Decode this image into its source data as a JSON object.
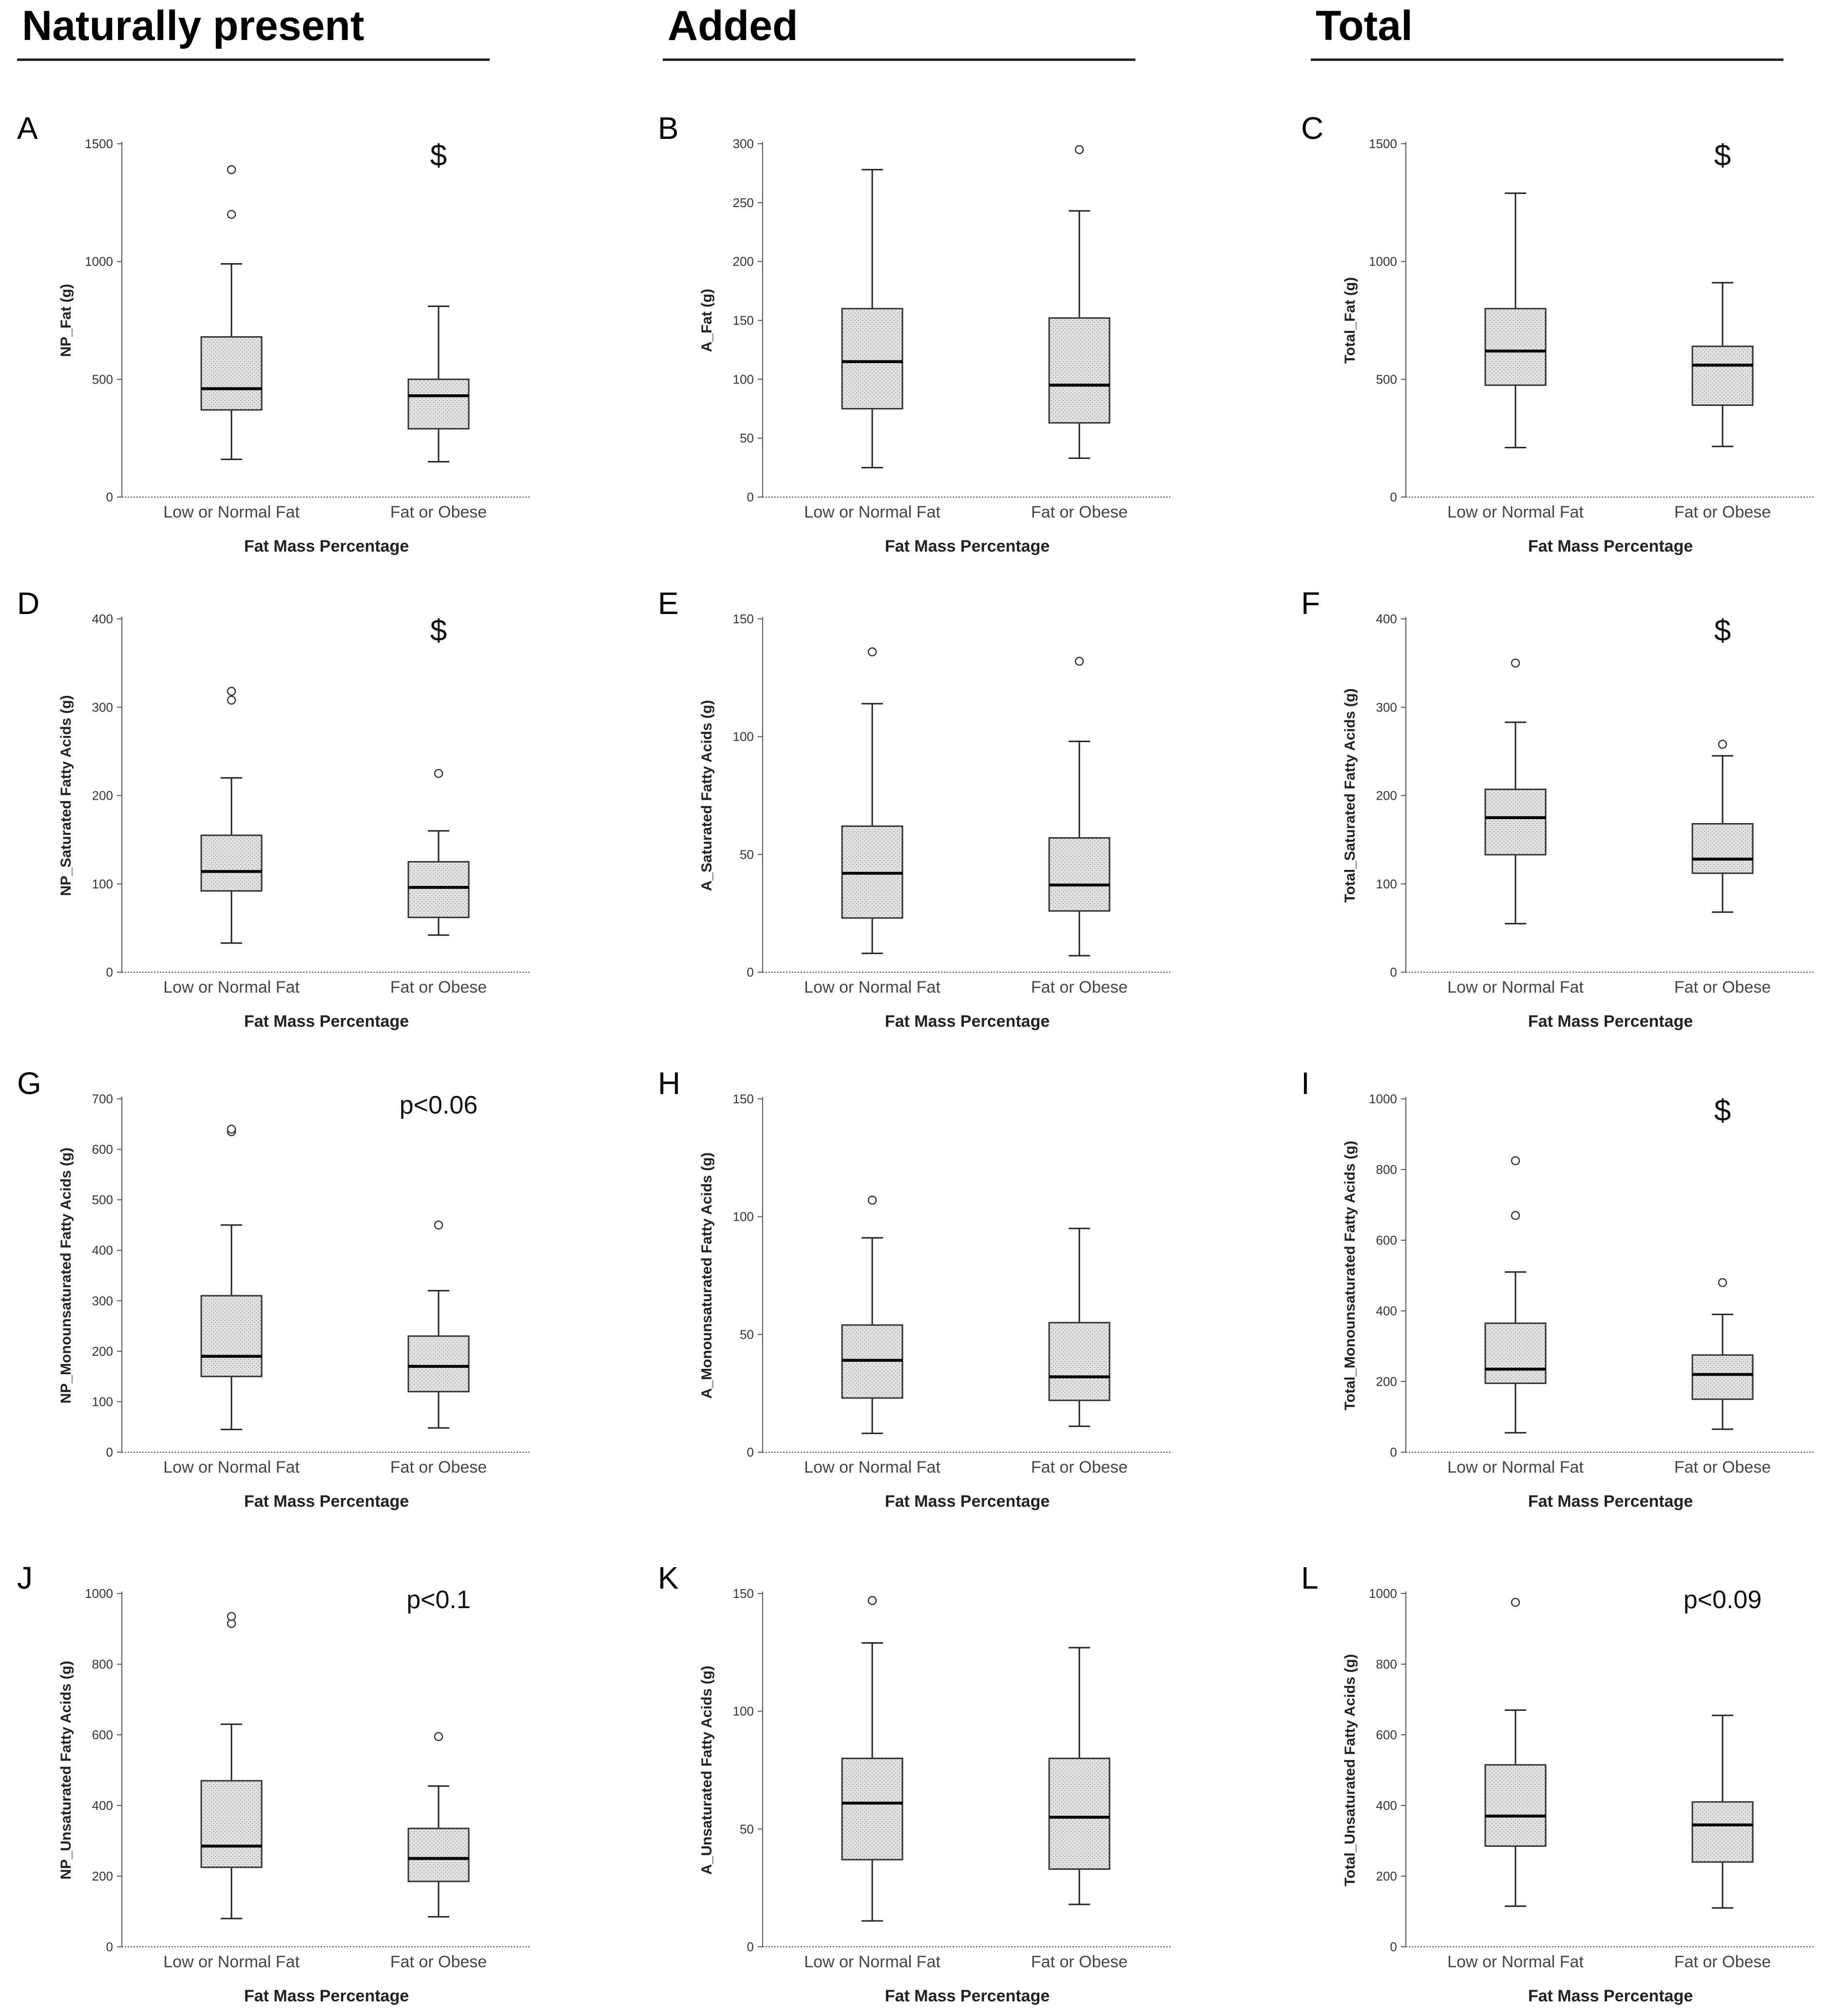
{
  "headers": {
    "naturally_present": "Naturally present",
    "added": "Added",
    "total": "Total"
  },
  "colors": {
    "box_fill": "#e2e2e2",
    "box_stroke": "#333333",
    "axis": "#555555",
    "median": "#000000"
  },
  "chart_data": [
    {
      "panel": "A",
      "type": "box",
      "ylabel": "NP_Fat (g)",
      "xlabel": "Fat Mass Percentage",
      "yticks": [
        0,
        500,
        1000,
        1500
      ],
      "ylim": [
        0,
        1500
      ],
      "sig": "$",
      "groups": [
        {
          "category": "Low or Normal Fat",
          "min": 160,
          "q1": 370,
          "median": 460,
          "q3": 680,
          "max": 990,
          "outliers": [
            1200,
            1390
          ]
        },
        {
          "category": "Fat or Obese",
          "min": 150,
          "q1": 290,
          "median": 430,
          "q3": 500,
          "max": 810,
          "outliers": []
        }
      ]
    },
    {
      "panel": "B",
      "type": "box",
      "ylabel": "A_Fat (g)",
      "xlabel": "Fat Mass Percentage",
      "yticks": [
        0,
        50,
        100,
        150,
        200,
        250,
        300
      ],
      "ylim": [
        0,
        300
      ],
      "sig": "",
      "groups": [
        {
          "category": "Low or Normal Fat",
          "min": 25,
          "q1": 75,
          "median": 115,
          "q3": 160,
          "max": 278,
          "outliers": []
        },
        {
          "category": "Fat or Obese",
          "min": 33,
          "q1": 63,
          "median": 95,
          "q3": 152,
          "max": 243,
          "outliers": [
            295
          ]
        }
      ]
    },
    {
      "panel": "C",
      "type": "box",
      "ylabel": "Total_Fat (g)",
      "xlabel": "Fat Mass Percentage",
      "yticks": [
        0,
        500,
        1000,
        1500
      ],
      "ylim": [
        0,
        1500
      ],
      "sig": "$",
      "groups": [
        {
          "category": "Low or Normal Fat",
          "min": 210,
          "q1": 475,
          "median": 620,
          "q3": 800,
          "max": 1290,
          "outliers": []
        },
        {
          "category": "Fat or Obese",
          "min": 215,
          "q1": 390,
          "median": 560,
          "q3": 640,
          "max": 910,
          "outliers": []
        }
      ]
    },
    {
      "panel": "D",
      "type": "box",
      "ylabel": "NP_Saturated Fatty Acids (g)",
      "xlabel": "Fat Mass Percentage",
      "yticks": [
        0,
        100,
        200,
        300,
        400
      ],
      "ylim": [
        0,
        400
      ],
      "sig": "$",
      "groups": [
        {
          "category": "Low or Normal Fat",
          "min": 33,
          "q1": 92,
          "median": 114,
          "q3": 155,
          "max": 220,
          "outliers": [
            308,
            318
          ]
        },
        {
          "category": "Fat or Obese",
          "min": 42,
          "q1": 62,
          "median": 96,
          "q3": 125,
          "max": 160,
          "outliers": [
            225
          ]
        }
      ]
    },
    {
      "panel": "E",
      "type": "box",
      "ylabel": "A_Saturated Fatty Acids (g)",
      "xlabel": "Fat Mass Percentage",
      "yticks": [
        0,
        50,
        100,
        150
      ],
      "ylim": [
        0,
        150
      ],
      "sig": "",
      "groups": [
        {
          "category": "Low or Normal Fat",
          "min": 8,
          "q1": 23,
          "median": 42,
          "q3": 62,
          "max": 114,
          "outliers": [
            136
          ]
        },
        {
          "category": "Fat or Obese",
          "min": 7,
          "q1": 26,
          "median": 37,
          "q3": 57,
          "max": 98,
          "outliers": [
            132
          ]
        }
      ]
    },
    {
      "panel": "F",
      "type": "box",
      "ylabel": "Total_Saturated Fatty Acids (g)",
      "xlabel": "Fat Mass Percentage",
      "yticks": [
        0,
        100,
        200,
        300,
        400
      ],
      "ylim": [
        0,
        400
      ],
      "sig": "$",
      "groups": [
        {
          "category": "Low or Normal Fat",
          "min": 55,
          "q1": 133,
          "median": 175,
          "q3": 207,
          "max": 283,
          "outliers": [
            350
          ]
        },
        {
          "category": "Fat or Obese",
          "min": 68,
          "q1": 112,
          "median": 128,
          "q3": 168,
          "max": 245,
          "outliers": [
            258
          ]
        }
      ]
    },
    {
      "panel": "G",
      "type": "box",
      "ylabel": "NP_Monounsaturated Fatty Acids (g)",
      "xlabel": "Fat Mass Percentage",
      "yticks": [
        0,
        100,
        200,
        300,
        400,
        500,
        600,
        700
      ],
      "ylim": [
        0,
        700
      ],
      "sig": "p<0.06",
      "groups": [
        {
          "category": "Low or Normal Fat",
          "min": 45,
          "q1": 150,
          "median": 190,
          "q3": 310,
          "max": 450,
          "outliers": [
            635,
            640
          ]
        },
        {
          "category": "Fat or Obese",
          "min": 48,
          "q1": 120,
          "median": 170,
          "q3": 230,
          "max": 320,
          "outliers": [
            450
          ]
        }
      ]
    },
    {
      "panel": "H",
      "type": "box",
      "ylabel": "A_Monounsaturated Fatty Acids (g)",
      "xlabel": "Fat Mass Percentage",
      "yticks": [
        0,
        50,
        100,
        150
      ],
      "ylim": [
        0,
        150
      ],
      "sig": "",
      "groups": [
        {
          "category": "Low or Normal Fat",
          "min": 8,
          "q1": 23,
          "median": 39,
          "q3": 54,
          "max": 91,
          "outliers": [
            107
          ]
        },
        {
          "category": "Fat or Obese",
          "min": 11,
          "q1": 22,
          "median": 32,
          "q3": 55,
          "max": 95,
          "outliers": []
        }
      ]
    },
    {
      "panel": "I",
      "type": "box",
      "ylabel": "Total_Monounsaturated Fatty Acids (g)",
      "xlabel": "Fat Mass Percentage",
      "yticks": [
        0,
        200,
        400,
        600,
        800,
        1000
      ],
      "ylim": [
        0,
        1000
      ],
      "sig": "$",
      "groups": [
        {
          "category": "Low or Normal Fat",
          "min": 55,
          "q1": 195,
          "median": 235,
          "q3": 365,
          "max": 510,
          "outliers": [
            670,
            825
          ]
        },
        {
          "category": "Fat or Obese",
          "min": 65,
          "q1": 150,
          "median": 220,
          "q3": 275,
          "max": 390,
          "outliers": [
            480
          ]
        }
      ]
    },
    {
      "panel": "J",
      "type": "box",
      "ylabel": "NP_Unsaturated Fatty Acids (g)",
      "xlabel": "Fat Mass Percentage",
      "yticks": [
        0,
        200,
        400,
        600,
        800,
        1000
      ],
      "ylim": [
        0,
        1000
      ],
      "sig": "p<0.1",
      "groups": [
        {
          "category": "Low or Normal Fat",
          "min": 80,
          "q1": 225,
          "median": 285,
          "q3": 470,
          "max": 630,
          "outliers": [
            915,
            935
          ]
        },
        {
          "category": "Fat or Obese",
          "min": 85,
          "q1": 185,
          "median": 250,
          "q3": 335,
          "max": 455,
          "outliers": [
            595
          ]
        }
      ]
    },
    {
      "panel": "K",
      "type": "box",
      "ylabel": "A_Unsaturated Fatty Acids (g)",
      "xlabel": "Fat Mass Percentage",
      "yticks": [
        0,
        50,
        100,
        150
      ],
      "ylim": [
        0,
        150
      ],
      "sig": "",
      "groups": [
        {
          "category": "Low or Normal Fat",
          "min": 11,
          "q1": 37,
          "median": 61,
          "q3": 80,
          "max": 129,
          "outliers": [
            147
          ]
        },
        {
          "category": "Fat or Obese",
          "min": 18,
          "q1": 33,
          "median": 55,
          "q3": 80,
          "max": 127,
          "outliers": []
        }
      ]
    },
    {
      "panel": "L",
      "type": "box",
      "ylabel": "Total_Unsaturated Fatty Acids (g)",
      "xlabel": "Fat Mass Percentage",
      "yticks": [
        0,
        200,
        400,
        600,
        800,
        1000
      ],
      "ylim": [
        0,
        1000
      ],
      "sig": "p<0.09",
      "groups": [
        {
          "category": "Low or Normal Fat",
          "min": 115,
          "q1": 285,
          "median": 370,
          "q3": 515,
          "max": 670,
          "outliers": [
            975
          ]
        },
        {
          "category": "Fat or Obese",
          "min": 110,
          "q1": 240,
          "median": 345,
          "q3": 410,
          "max": 655,
          "outliers": []
        }
      ]
    }
  ]
}
